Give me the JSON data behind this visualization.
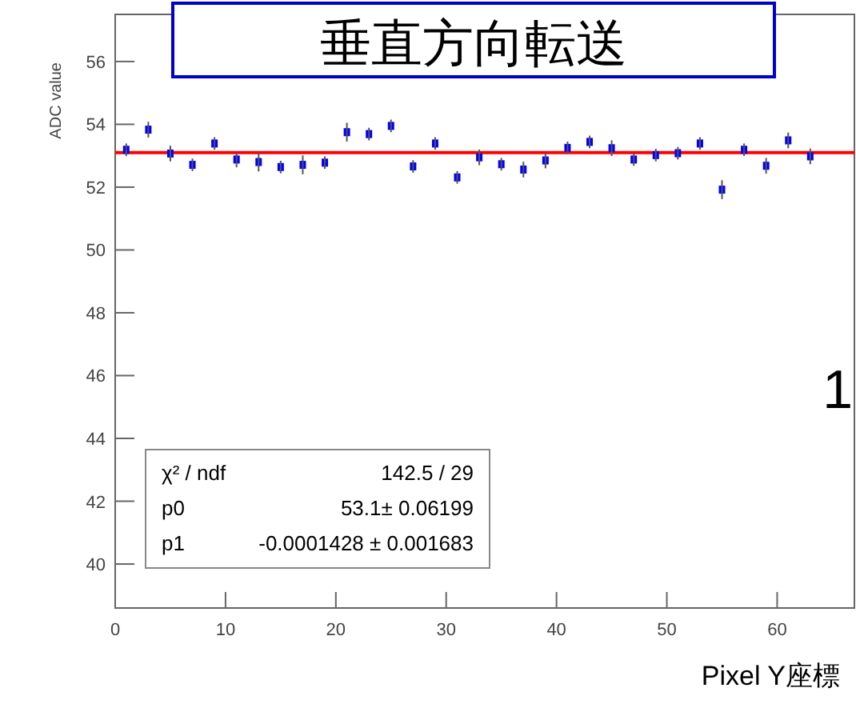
{
  "chart_data": {
    "type": "scatter",
    "title": "垂直方向転送",
    "xlabel": "Pixel Y座標",
    "ylabel": "ADC value",
    "annotations": [
      "χ² / ndf",
      "142.5 / 29",
      "p0",
      "53.1± 0.06199",
      "p1",
      "-0.0001428 ± 0.001683",
      "1"
    ],
    "xlim": [
      0,
      67
    ],
    "ylim": [
      38.6,
      57.5
    ],
    "xticks": [
      0,
      10,
      20,
      30,
      40,
      50,
      60
    ],
    "yticks": [
      40,
      42,
      44,
      46,
      48,
      50,
      52,
      54,
      56
    ],
    "grid": false,
    "marker": "square",
    "series": [
      {
        "color": "#0000ff",
        "x": [
          1,
          3,
          5,
          7,
          9,
          11,
          13,
          15,
          17,
          19,
          21,
          23,
          25,
          27,
          29,
          31,
          33,
          35,
          37,
          39,
          41,
          43,
          45,
          47,
          49,
          51,
          53,
          55,
          57,
          59,
          61,
          63
        ],
        "values": [
          53.19,
          53.83,
          53.07,
          52.71,
          53.39,
          52.88,
          52.8,
          52.64,
          52.71,
          52.78,
          53.75,
          53.69,
          53.95,
          52.66,
          53.39,
          52.31,
          52.95,
          52.73,
          52.56,
          52.85,
          53.25,
          53.44,
          53.24,
          52.88,
          53.02,
          53.08,
          53.39,
          51.92,
          53.19,
          52.68,
          53.49,
          52.98
        ],
        "errors": [
          0.2,
          0.25,
          0.25,
          0.2,
          0.2,
          0.25,
          0.3,
          0.2,
          0.3,
          0.2,
          0.3,
          0.2,
          0.2,
          0.2,
          0.2,
          0.2,
          0.25,
          0.2,
          0.25,
          0.25,
          0.2,
          0.2,
          0.25,
          0.2,
          0.2,
          0.2,
          0.2,
          0.3,
          0.2,
          0.25,
          0.25,
          0.25
        ]
      },
      {
        "type": "line",
        "color": "#ff0000",
        "marker": "none",
        "x": [
          0,
          67
        ],
        "values": [
          53.1,
          53.1
        ]
      }
    ]
  }
}
